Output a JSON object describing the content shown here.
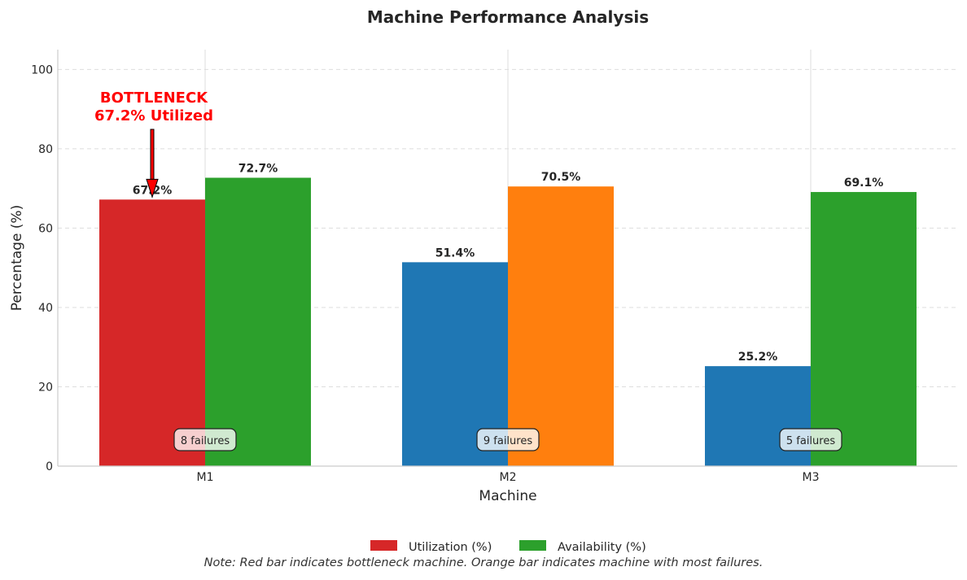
{
  "chart_data": {
    "type": "bar",
    "title": "Machine Performance Analysis",
    "xlabel": "Machine",
    "ylabel": "Percentage (%)",
    "categories": [
      "M1",
      "M2",
      "M3"
    ],
    "ylim": [
      0,
      105
    ],
    "yticks": [
      "0",
      "20",
      "40",
      "60",
      "80",
      "100"
    ],
    "grid": true,
    "series": [
      {
        "name": "Utilization (%)",
        "values": [
          67.2,
          51.4,
          25.2
        ],
        "labels": [
          "67.2%",
          "51.4%",
          "25.2%"
        ],
        "colors": [
          "#d62728",
          "#1f77b4",
          "#1f77b4"
        ]
      },
      {
        "name": "Availability (%)",
        "values": [
          72.7,
          70.5,
          69.1
        ],
        "labels": [
          "72.7%",
          "70.5%",
          "69.1%"
        ],
        "colors": [
          "#2ca02c",
          "#ff7f0e",
          "#2ca02c"
        ]
      }
    ],
    "failures": [
      "8 failures",
      "9 failures",
      "5 failures"
    ],
    "annotation": {
      "category": "M1",
      "lines": [
        "BOTTLENECK",
        "67.2% Utilized"
      ],
      "color": "#ff0000"
    },
    "legend": {
      "placement": "bottom-center",
      "entries": [
        {
          "label": "Utilization (%)",
          "color": "#d62728"
        },
        {
          "label": "Availability (%)",
          "color": "#2ca02c"
        }
      ]
    }
  },
  "note": "Note: Red bar indicates bottleneck machine. Orange bar indicates machine with most failures."
}
